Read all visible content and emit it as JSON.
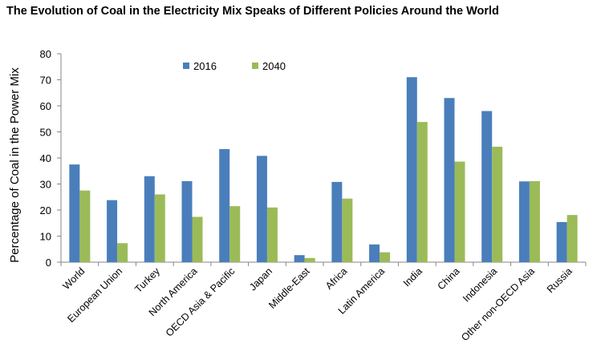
{
  "page_title": "The Evolution of Coal in the Electricity Mix Speaks of Different Policies Around the World",
  "chart_data": {
    "type": "bar",
    "title": "The Evolution of Coal in the Electricity Mix Speaks of Different Policies Around the World",
    "xlabel": "",
    "ylabel": "Percentage of Coal in the Power Mix",
    "ylim": [
      0,
      80
    ],
    "yticks": [
      0,
      10,
      20,
      30,
      40,
      50,
      60,
      70,
      80
    ],
    "grid": false,
    "legend_position": "top-left",
    "categories": [
      "World",
      "European Union",
      "Turkey",
      "North America",
      "OECD  Asia & Pacific",
      "Japan",
      "Middle-East",
      "Africa",
      "Latin America",
      "India",
      "China",
      "Indonesia",
      "Other non-OECD Asia",
      "Russia"
    ],
    "series": [
      {
        "name": "2016",
        "color": "#4a7ebb",
        "values": [
          37.5,
          23.8,
          33,
          31.1,
          43.4,
          40.8,
          2.7,
          30.8,
          6.8,
          71,
          63,
          58,
          31,
          15.4
        ]
      },
      {
        "name": "2040",
        "color": "#9bbb59",
        "values": [
          27.5,
          7.3,
          26,
          17.4,
          21.5,
          21,
          1.6,
          24.4,
          3.8,
          53.8,
          38.6,
          44.3,
          31.1,
          18.1
        ]
      }
    ]
  }
}
